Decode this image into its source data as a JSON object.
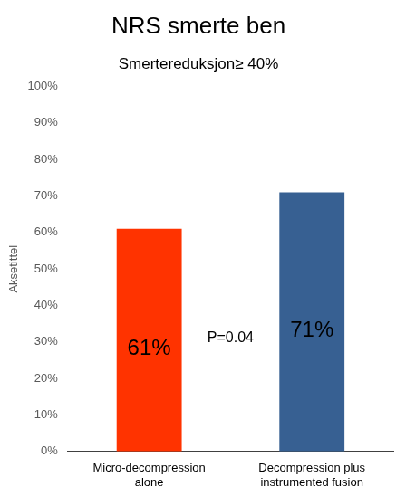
{
  "chart_data": {
    "type": "bar",
    "title": "NRS smerte ben",
    "subtitle": "Smertereduksjon≥ 40%",
    "y_label": "Aksetittel",
    "annotations": [
      "P=0.04"
    ],
    "categories": [
      "Micro-decompression alone",
      "Decompression plus instrumented fusion"
    ],
    "values": [
      61,
      71
    ],
    "value_labels": [
      "61%",
      "71%"
    ],
    "colors": [
      "#ff3300",
      "#376092"
    ],
    "ylim": [
      0,
      100
    ],
    "yticks": [
      {
        "value": 0,
        "label": "0%"
      },
      {
        "value": 10,
        "label": "10%"
      },
      {
        "value": 20,
        "label": "20%"
      },
      {
        "value": 30,
        "label": "30%"
      },
      {
        "value": 40,
        "label": "40%"
      },
      {
        "value": 50,
        "label": "50%"
      },
      {
        "value": 60,
        "label": "60%"
      },
      {
        "value": 70,
        "label": "70%"
      },
      {
        "value": 80,
        "label": "80%"
      },
      {
        "value": 90,
        "label": "90%"
      },
      {
        "value": 100,
        "label": "100%"
      }
    ],
    "grid": false,
    "data_labels": true
  }
}
